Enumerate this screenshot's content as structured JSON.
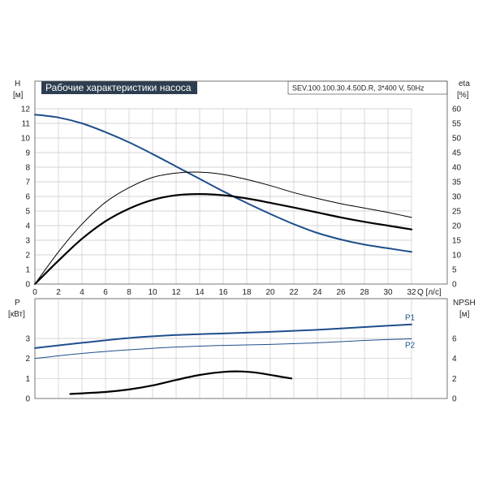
{
  "chart_data": [
    {
      "type": "line",
      "title": "Рабочие характеристики насоса",
      "subtitle": "SEV.100.100.30.4.50D.R, 3*400 V, 50Hz",
      "xlabel": "Q [л/с]",
      "ylabel_left": "H",
      "ylabel_left_unit": "[м]",
      "ylabel_right": "eta",
      "ylabel_right_unit": "[%]",
      "xlim": [
        0,
        32
      ],
      "ylim_left": [
        0,
        12
      ],
      "ylim_right": [
        0,
        60
      ],
      "x_ticks": [
        "0",
        "2",
        "4",
        "6",
        "8",
        "10",
        "12",
        "14",
        "16",
        "18",
        "20",
        "22",
        "24",
        "26",
        "28",
        "30",
        "32"
      ],
      "y_ticks_left": [
        "0",
        "1",
        "2",
        "3",
        "4",
        "5",
        "6",
        "7",
        "8",
        "9",
        "10",
        "11",
        "12"
      ],
      "y_ticks_right": [
        "0",
        "5",
        "10",
        "15",
        "20",
        "25",
        "30",
        "35",
        "40",
        "45",
        "50",
        "55",
        "60"
      ],
      "grid": true,
      "series": [
        {
          "id": "head",
          "axis": "left",
          "color": "#1f4e8c",
          "x": [
            0,
            2,
            4,
            6,
            8,
            10,
            12,
            14,
            16,
            18,
            20,
            22,
            24,
            26,
            28,
            30,
            32
          ],
          "values": [
            11.6,
            11.4,
            11.0,
            10.4,
            9.7,
            8.9,
            8.05,
            7.2,
            6.35,
            5.55,
            4.8,
            4.1,
            3.5,
            3.05,
            2.7,
            2.45,
            2.2
          ]
        },
        {
          "id": "eta-thin",
          "axis": "right",
          "color": "#000000",
          "x": [
            0,
            2,
            4,
            6,
            8,
            10,
            12,
            14,
            16,
            18,
            20,
            22,
            24,
            26,
            28,
            30,
            32
          ],
          "values": [
            0,
            11,
            20.5,
            28,
            33,
            36.5,
            38,
            38.3,
            37.5,
            35.8,
            33.7,
            31.3,
            29.3,
            27.5,
            26,
            24.5,
            22.8
          ]
        },
        {
          "id": "eta-thick",
          "axis": "right",
          "color": "#000000",
          "x": [
            0,
            2,
            4,
            6,
            8,
            10,
            12,
            14,
            16,
            18,
            20,
            22,
            24,
            26,
            28,
            30,
            32
          ],
          "values": [
            0,
            8,
            15.5,
            21.5,
            25.8,
            28.8,
            30.4,
            30.8,
            30.4,
            29.3,
            27.8,
            26.2,
            24.5,
            22.8,
            21.3,
            20,
            18.7
          ]
        }
      ]
    },
    {
      "type": "line",
      "ylabel_left": "P",
      "ylabel_left_unit": "[кВт]",
      "ylabel_right": "NPSH",
      "ylabel_right_unit": "[м]",
      "xlim": [
        0,
        32
      ],
      "ylim_left": [
        0,
        4
      ],
      "ylim_right": [
        0,
        8
      ],
      "y_ticks_left": [
        "0",
        "1",
        "2",
        "3"
      ],
      "y_ticks_right": [
        "0",
        "2",
        "4",
        "6"
      ],
      "grid": true,
      "series": [
        {
          "id": "p1",
          "name": "P1",
          "axis": "left",
          "color": "#1f4e8c",
          "x": [
            0,
            4,
            8,
            12,
            16,
            20,
            24,
            28,
            32
          ],
          "values": [
            2.52,
            2.78,
            3.02,
            3.17,
            3.25,
            3.33,
            3.43,
            3.57,
            3.7
          ]
        },
        {
          "id": "p2",
          "name": "P2",
          "axis": "left",
          "color": "#1f4e8c",
          "x": [
            0,
            4,
            8,
            12,
            16,
            20,
            24,
            28,
            32
          ],
          "values": [
            2.0,
            2.25,
            2.43,
            2.57,
            2.65,
            2.7,
            2.78,
            2.9,
            2.98
          ]
        },
        {
          "id": "npsh",
          "axis": "right",
          "color": "#000000",
          "x": [
            3,
            6,
            8,
            10,
            12,
            14,
            16,
            17.5,
            19,
            21,
            21.8
          ],
          "values": [
            0.45,
            0.65,
            0.9,
            1.3,
            1.85,
            2.35,
            2.65,
            2.7,
            2.55,
            2.15,
            2.0
          ]
        }
      ]
    }
  ]
}
